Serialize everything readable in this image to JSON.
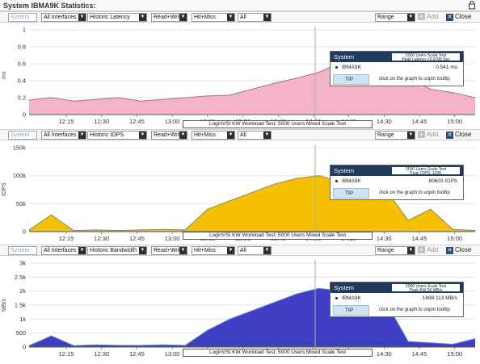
{
  "window": {
    "title": "System IBMA9K Statistics:",
    "lock_icon": "lock-icon"
  },
  "colors": {
    "latency_fill": "#f5b3c8",
    "latency_line": "#8a7aa8",
    "iops_fill": "#f5c000",
    "iops_line": "#6e87a8",
    "bandwidth_fill": "#3f3fc4",
    "bandwidth_line": "#6e87a8",
    "tooltip_header": "#1f3a5c",
    "tip_bg": "#cfe3f3"
  },
  "panels": [
    {
      "toolbar": {
        "system_placeholder": "System",
        "interface": "All Interfaces",
        "metric": "Historic Latency",
        "rw": "Read+Write",
        "hit": "Hit+Miss",
        "all": "All",
        "range": "Range",
        "add_label": "Add",
        "close_label": "Close"
      },
      "y_unit": "ms",
      "caption": "LoginVSI KW Workload Test: 5000 Users Mixed Scale Test",
      "tooltip": {
        "header": "System",
        "info_line1": "5000 Users Scale Test",
        "info_line2": "Peak Latency <0.8 Mil Sec",
        "series": "IBMA9K",
        "value": "0.541 ms",
        "tip": "TIP",
        "tip_message": "click on the graph to unpin tooltip"
      },
      "chart_data": {
        "type": "area",
        "y_ticks": [
          "0",
          "0.2",
          "0.4",
          "0.6",
          "0.8",
          "1"
        ],
        "ylim": [
          0,
          1
        ],
        "x_ticks": [
          "12:15",
          "12:30",
          "12:45",
          "13:00",
          "13:15",
          "13:30",
          "13:45",
          "14:00",
          "14:15",
          "14:30",
          "14:45",
          "15:00"
        ],
        "x": [
          0,
          0.6,
          1.2,
          1.8,
          2.4,
          3.0,
          3.6,
          4.2,
          4.8,
          5.4,
          6.0,
          6.6,
          7.2,
          7.8,
          8.4,
          9.0,
          9.6,
          10.2,
          10.8,
          11.4,
          12.0
        ],
        "values": [
          0.17,
          0.2,
          0.16,
          0.18,
          0.2,
          0.16,
          0.18,
          0.2,
          0.22,
          0.23,
          0.3,
          0.37,
          0.43,
          0.5,
          0.62,
          0.58,
          0.48,
          0.44,
          0.3,
          0.26,
          0.2
        ]
      }
    },
    {
      "toolbar": {
        "system_placeholder": "System",
        "interface": "All Interfaces",
        "metric": "Historic IOPS",
        "rw": "Read+Write",
        "hit": "Hit+Miss",
        "all": "All",
        "range": "Range",
        "add_label": "Add",
        "close_label": "Close"
      },
      "y_unit": "IOPS",
      "caption": "LoginVSI KW Workload Test: 5000 Users Mixed Scale Test",
      "tooltip": {
        "header": "System",
        "info_line1": "5000 Users Scale Test",
        "info_line2": "Peak IOPS: 100K",
        "series": "IBMA9K",
        "value": "80603 IOPS",
        "tip": "TIP",
        "tip_message": "click on the graph to unpin tooltip"
      },
      "chart_data": {
        "type": "area",
        "y_ticks": [
          "0",
          "50k",
          "100k",
          "150k"
        ],
        "ylim": [
          0,
          150000
        ],
        "x_ticks": [
          "12:15",
          "12:30",
          "12:45",
          "13:00",
          "13:15",
          "13:30",
          "13:45",
          "14:00",
          "14:15",
          "14:30",
          "14:45",
          "15:00"
        ],
        "x": [
          0,
          0.6,
          1.2,
          1.8,
          2.4,
          3.0,
          3.6,
          4.2,
          4.8,
          5.4,
          6.0,
          6.6,
          7.2,
          7.8,
          8.4,
          9.0,
          9.6,
          10.2,
          10.8,
          11.4,
          12.0
        ],
        "values": [
          3000,
          30000,
          2000,
          3000,
          2000,
          3000,
          4000,
          3000,
          40000,
          55000,
          70000,
          85000,
          95000,
          100000,
          88000,
          80000,
          75000,
          20000,
          40000,
          4000,
          2000
        ]
      }
    },
    {
      "toolbar": {
        "system_placeholder": "System",
        "interface": "All Interfaces",
        "metric": "Historic Bandwidth",
        "rw": "Read+Write",
        "hit": "Hit+Miss",
        "all": "All",
        "range": "Range",
        "add_label": "Add",
        "close_label": "Close"
      },
      "y_unit": "MB/s",
      "caption": "LoginVSI KW Workload Test: 5000 Users Mixed Scale Test",
      "tooltip": {
        "header": "System",
        "info_line1": "5000 Users Scale Test",
        "info_line2": "Peak BW:2K MB/s",
        "series": "IBMA9K",
        "value": "1888.113 MB/s",
        "tip": "TIP",
        "tip_message": "click on the graph to unpin tooltip"
      },
      "chart_data": {
        "type": "area",
        "y_ticks": [
          "0",
          "500",
          "1k",
          "1.5k",
          "2k",
          "2.5k",
          "3k"
        ],
        "ylim": [
          0,
          3000
        ],
        "x_ticks": [
          "12:15",
          "12:30",
          "12:45",
          "13:00",
          "13:15",
          "13:30",
          "13:45",
          "14:00",
          "14:15",
          "14:30",
          "14:45",
          "15:00"
        ],
        "x": [
          0,
          0.6,
          1.2,
          1.8,
          2.4,
          3.0,
          3.6,
          4.2,
          4.8,
          5.4,
          6.0,
          6.6,
          7.2,
          7.8,
          8.4,
          9.0,
          9.6,
          10.2,
          10.8,
          11.4,
          12.0
        ],
        "values": [
          50,
          400,
          50,
          80,
          60,
          60,
          80,
          60,
          600,
          1000,
          1300,
          1600,
          1900,
          2100,
          2000,
          1900,
          1600,
          200,
          150,
          100,
          300
        ]
      }
    }
  ]
}
